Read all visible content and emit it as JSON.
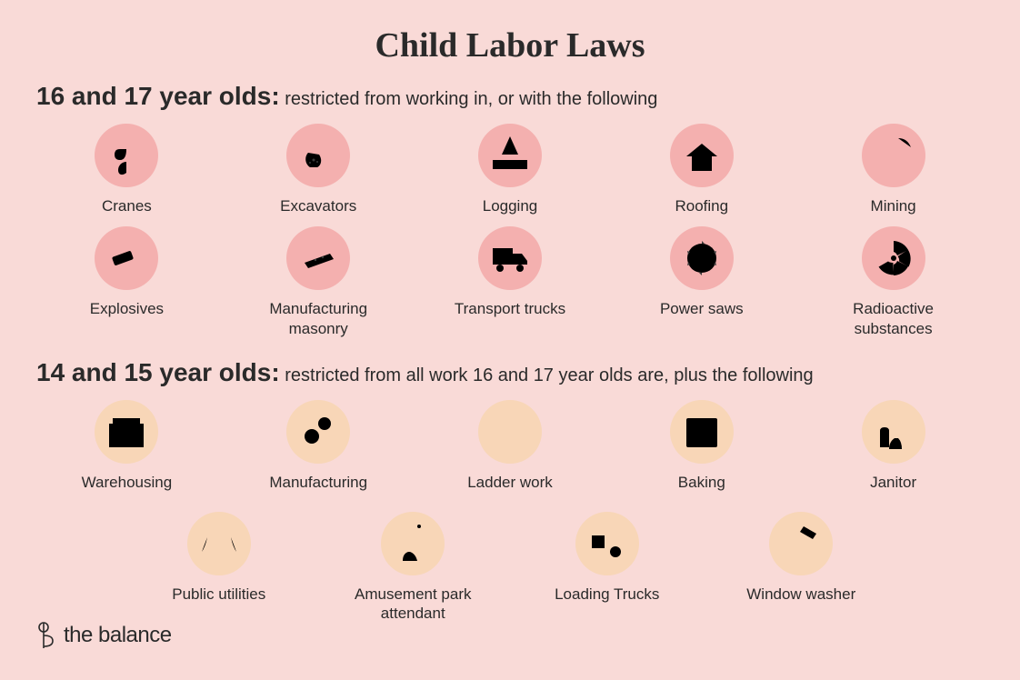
{
  "title": "Child Labor Laws",
  "colors": {
    "background": "#f9dad7",
    "circle_group1": "#f4b0af",
    "circle_group2": "#f8d6b7",
    "text": "#2a2a2a",
    "icon_stroke": "#3a3a3a"
  },
  "group1": {
    "age": "16 and 17 year olds:",
    "tagline": "restricted from working in, or with the following",
    "items": [
      {
        "label": "Cranes",
        "icon": "crane"
      },
      {
        "label": "Excavators",
        "icon": "excavator"
      },
      {
        "label": "Logging",
        "icon": "logging"
      },
      {
        "label": "Roofing",
        "icon": "roofing"
      },
      {
        "label": "Mining",
        "icon": "mining"
      },
      {
        "label": "Explosives",
        "icon": "explosives"
      },
      {
        "label": "Manufacturing masonry",
        "icon": "masonry"
      },
      {
        "label": "Transport trucks",
        "icon": "truck"
      },
      {
        "label": "Power saws",
        "icon": "saw"
      },
      {
        "label": "Radioactive substances",
        "icon": "radioactive"
      }
    ]
  },
  "group2": {
    "age": "14 and 15 year olds:",
    "tagline": "restricted from all work 16 and 17 year olds are, plus the following",
    "row1": [
      {
        "label": "Warehousing",
        "icon": "warehouse"
      },
      {
        "label": "Manufacturing",
        "icon": "gears"
      },
      {
        "label": "Ladder work",
        "icon": "ladder"
      },
      {
        "label": "Baking",
        "icon": "oven"
      },
      {
        "label": "Janitor",
        "icon": "janitor"
      }
    ],
    "row2": [
      {
        "label": "Public utilities",
        "icon": "utilities"
      },
      {
        "label": "Amusement park attendant",
        "icon": "amusement"
      },
      {
        "label": "Loading Trucks",
        "icon": "loading"
      },
      {
        "label": "Window washer",
        "icon": "squeegee"
      }
    ]
  },
  "brand": "the balance"
}
